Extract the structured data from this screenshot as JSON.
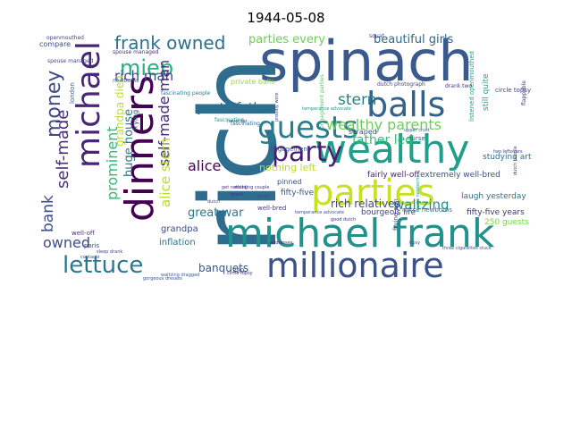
{
  "title": "1944-05-08",
  "words": [
    {
      "text": "spinach",
      "color": "#3b5a8c"
    },
    {
      "text": "rich",
      "color": "#2e6d8e"
    },
    {
      "text": "michael frank",
      "color": "#21918c"
    },
    {
      "text": "millionaire",
      "color": "#3b528b"
    },
    {
      "text": "wealthy",
      "color": "#1f9e89"
    },
    {
      "text": "parties",
      "color": "#c7e020"
    },
    {
      "text": "balls",
      "color": "#33638d"
    },
    {
      "text": "dinners",
      "color": "#440154"
    },
    {
      "text": "michael",
      "color": "#482677"
    },
    {
      "text": "guests",
      "color": "#287d8e"
    },
    {
      "text": "party",
      "color": "#481f70"
    },
    {
      "text": "lettuce",
      "color": "#2a788e"
    },
    {
      "text": "miep",
      "color": "#29af7f"
    },
    {
      "text": "money",
      "color": "#3e4a89"
    },
    {
      "text": "frank owned",
      "color": "#2d708e"
    },
    {
      "text": "wealthy parents",
      "color": "#6ccd5a"
    },
    {
      "text": "rich man",
      "color": "#3f4788"
    },
    {
      "text": "self-made man",
      "color": "#472d7b"
    },
    {
      "text": "alice stern",
      "color": "#b5de2b"
    },
    {
      "text": "alice",
      "color": "#440154"
    },
    {
      "text": "stern",
      "color": "#26828e"
    },
    {
      "text": "self-made",
      "color": "#472c7a"
    },
    {
      "text": "prominent",
      "color": "#35b779"
    },
    {
      "text": "bank",
      "color": "#3d4e8a"
    },
    {
      "text": "owned",
      "color": "#3e4c8a"
    },
    {
      "text": "huge house",
      "color": "#2a768e"
    },
    {
      "text": "youth father",
      "color": "#2c728e"
    },
    {
      "text": "father led",
      "color": "#3aba76"
    },
    {
      "text": "parties every",
      "color": "#6ece58"
    },
    {
      "text": "beautiful girls",
      "color": "#31688e"
    },
    {
      "text": "great war",
      "color": "#2a788e"
    },
    {
      "text": "waltzing",
      "color": "#218e8d"
    },
    {
      "text": "banquets",
      "color": "#39568c"
    },
    {
      "text": "nothing left",
      "color": "#b8de29"
    },
    {
      "text": "grandpa died",
      "color": "#bddf26"
    },
    {
      "text": "rich relatives",
      "color": "#3f4889"
    },
    {
      "text": "inflation",
      "color": "#2c728e"
    },
    {
      "text": "grandpa",
      "color": "#3e4a89"
    },
    {
      "text": "fifty-five",
      "color": "#3b528b"
    },
    {
      "text": "fairly well-off",
      "color": "#482878"
    },
    {
      "text": "extremely well-bred",
      "color": "#3b528b"
    },
    {
      "text": "bourgeois life",
      "color": "#433e85"
    },
    {
      "text": "laugh yesterday",
      "color": "#2d708e"
    },
    {
      "text": "studying art",
      "color": "#2d708e"
    },
    {
      "text": "fifty-five years",
      "color": "#46337f"
    },
    {
      "text": "250 guests",
      "color": "#7ad151"
    },
    {
      "text": "private balls",
      "color": "#a0da39"
    },
    {
      "text": "compare",
      "color": "#3f4788"
    },
    {
      "text": "spouse managed",
      "color": "#472f7d"
    },
    {
      "text": "newborns",
      "color": "#375b8d"
    },
    {
      "text": "well-bred",
      "color": "#453781"
    },
    {
      "text": "pinned",
      "color": "#3d4e8a"
    },
    {
      "text": "engagement",
      "color": "#3b528b"
    },
    {
      "text": "scraped",
      "color": "#3e4989"
    },
    {
      "text": "nurse newborns",
      "color": "#2a788e"
    },
    {
      "text": "paris",
      "color": "#3b528b"
    },
    {
      "text": "fascinating",
      "color": "#2f6c8e"
    },
    {
      "text": "fascinating people",
      "color": "#277f8e"
    },
    {
      "text": "engagement parties",
      "color": "#5ec962"
    },
    {
      "text": "listened openmouthed",
      "color": "#1fa088"
    },
    {
      "text": "still quite",
      "color": "#20a486"
    },
    {
      "text": "openmouthed",
      "color": "#3f4788"
    },
    {
      "text": "good dutch",
      "color": "#472d7b"
    },
    {
      "text": "temperance advocate",
      "color": "#39568c"
    },
    {
      "text": "gorgeous dresses",
      "color": "#3b528b"
    },
    {
      "text": "dutch people",
      "color": "#3e4989"
    },
    {
      "text": "frying pan",
      "color": "#3e4c8a"
    },
    {
      "text": "wedding couple",
      "color": "#463480"
    },
    {
      "text": "drank",
      "color": "#453882"
    },
    {
      "text": "nurse",
      "color": "#3b528b"
    },
    {
      "text": "250",
      "color": "#3d4d8a"
    },
    {
      "text": "squat",
      "color": "#3e4a89"
    },
    {
      "text": "contacts",
      "color": "#3b528b"
    },
    {
      "text": "frying",
      "color": "#39568c"
    },
    {
      "text": "sleep drank",
      "color": "#3e4989"
    },
    {
      "text": "three cigarettes stuck",
      "color": "#3d4e8a"
    },
    {
      "text": "proudly wore",
      "color": "#404688"
    },
    {
      "text": "upper crust",
      "color": "#3a548c"
    },
    {
      "text": "london",
      "color": "#34608d"
    },
    {
      "text": "well-off",
      "color": "#472c7a"
    },
    {
      "text": "waltzing dragged",
      "color": "#355f8d"
    },
    {
      "text": "circle topsy",
      "color": "#46327e"
    },
    {
      "text": "temperance advocate",
      "color": "#1f9a8a"
    },
    {
      "text": "never far",
      "color": "#414487"
    },
    {
      "text": "get nothing",
      "color": "#463480"
    },
    {
      "text": "dutch",
      "color": "#3e4a89"
    },
    {
      "text": "addresses",
      "color": "#482173"
    },
    {
      "text": "tipsy",
      "color": "#3b528b"
    },
    {
      "text": "spouse managed",
      "color": "#3e4989"
    },
    {
      "text": "nurse newborns",
      "color": "#1f968b"
    },
    {
      "text": "dutch photograph",
      "color": "#433e85"
    },
    {
      "text": "fascinating",
      "color": "#1f9a8a"
    },
    {
      "text": "good",
      "color": "#3d4e8a"
    },
    {
      "text": "circle topsy",
      "color": "#3f4788"
    },
    {
      "text": "drank two",
      "color": "#443983"
    },
    {
      "text": "two leftovers",
      "color": "#414487"
    },
    {
      "text": "flappable",
      "color": "#3f4788"
    }
  ]
}
